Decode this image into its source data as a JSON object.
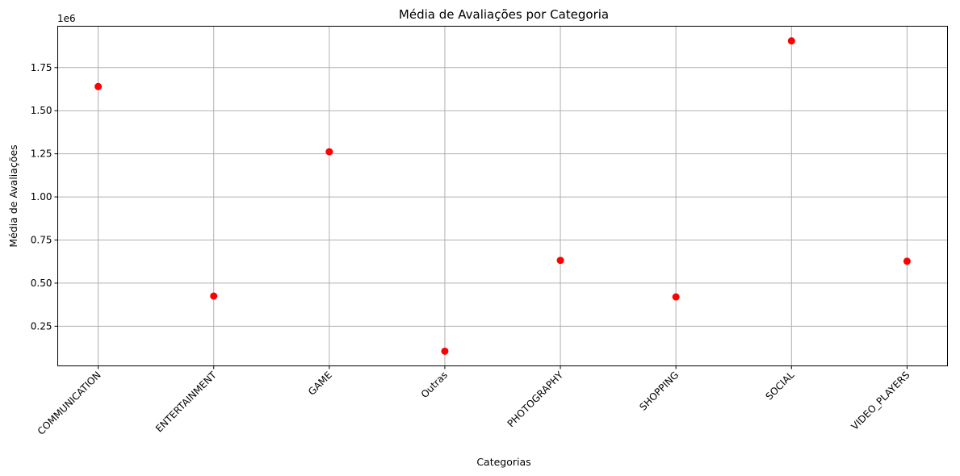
{
  "chart_data": {
    "type": "scatter",
    "title": "Média de Avaliações por Categoria",
    "xlabel": "Categorias",
    "ylabel": "Média de Avaliações",
    "y_offset_label": "1e6",
    "categories": [
      "COMMUNICATION",
      "ENTERTAINMENT",
      "GAME",
      "Outras",
      "PHOTOGRAPHY",
      "SHOPPING",
      "SOCIAL",
      "VIDEO_PLAYERS"
    ],
    "values": [
      1640000,
      425000,
      1262000,
      105000,
      632000,
      420000,
      1905000,
      627000
    ],
    "y_ticks": [
      0.25,
      0.5,
      0.75,
      1.0,
      1.25,
      1.5,
      1.75
    ],
    "y_tick_labels": [
      "0.25",
      "0.50",
      "0.75",
      "1.00",
      "1.25",
      "1.50",
      "1.75"
    ],
    "ylim": [
      0.02,
      1.99
    ],
    "y_scale": 1000000,
    "grid": true,
    "marker_color": "#ff0000"
  }
}
